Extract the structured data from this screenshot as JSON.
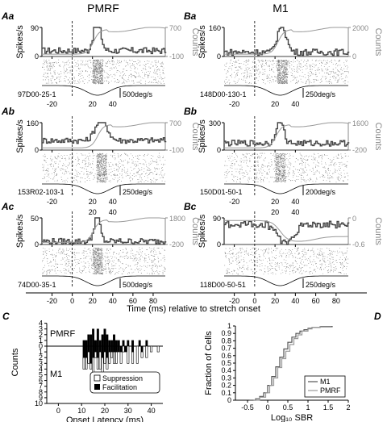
{
  "figure": {
    "col_titles": [
      "PMRF",
      "M1"
    ],
    "time_axis_label": "Time (ms) relative  to stretch onset",
    "time_ticks": [
      -20,
      0,
      20,
      40,
      60,
      80
    ],
    "left_axis_label": "Spikes/s",
    "right_axis_label": "Counts",
    "panels": [
      {
        "id": "Aa",
        "label": "Aa",
        "cell": "97D00-25-1",
        "velocity": "500deg/s",
        "y_top": "90",
        "y_bot": "0",
        "r_top": "700",
        "r_bot": "-100"
      },
      {
        "id": "Ab",
        "label": "Ab",
        "cell": "153R02-103-1",
        "velocity": "250deg/s",
        "y_top": "160",
        "y_bot": "0",
        "r_top": "700",
        "r_bot": "-100"
      },
      {
        "id": "Ac",
        "label": "Ac",
        "cell": "74D00-35-1",
        "velocity": "500deg/s",
        "y_top": "50",
        "y_bot": "0",
        "r_top": "1800",
        "r_bot": "-200"
      },
      {
        "id": "Ba",
        "label": "Ba",
        "cell": "148D00-130-1",
        "velocity": "250deg/s",
        "y_top": "160",
        "y_bot": "0",
        "r_top": "2000",
        "r_bot": "0"
      },
      {
        "id": "Bb",
        "label": "Bb",
        "cell": "150D01-50-1",
        "velocity": "200deg/s",
        "y_top": "300",
        "y_bot": "0",
        "r_top": "1600",
        "r_bot": "-200"
      },
      {
        "id": "Bc",
        "label": "Bc",
        "cell": "118D00-50-51",
        "velocity": "250deg/s",
        "y_top": "90",
        "y_bot": "0",
        "r_top": "0",
        "r_bot": "-0.6"
      }
    ]
  },
  "chart_data": [
    {
      "type": "bar",
      "panel": "C",
      "xlabel": "Onset Latency (ms)",
      "ylabel": "Counts",
      "x_ticks": [
        "0",
        "10",
        "20",
        "30",
        "40"
      ],
      "y_ticks_top": [
        "4",
        "3",
        "2",
        "1",
        "0"
      ],
      "y_ticks_bottom": [
        "1",
        "2",
        "3",
        "4",
        "5",
        "6",
        "7",
        "8",
        "9",
        "10"
      ],
      "group_labels": [
        "PMRF",
        "M1"
      ],
      "legend": [
        "Suppression",
        "Facilitation"
      ],
      "pmrf_facilitation": [
        [
          11,
          1
        ],
        [
          12,
          1
        ],
        [
          13,
          2
        ],
        [
          14,
          2
        ],
        [
          15,
          3
        ],
        [
          16,
          1
        ],
        [
          17,
          3
        ],
        [
          18,
          1
        ],
        [
          19,
          2
        ],
        [
          20,
          3
        ],
        [
          21,
          2
        ],
        [
          22,
          1
        ],
        [
          23,
          1
        ],
        [
          24,
          2
        ],
        [
          25,
          1
        ],
        [
          26,
          1
        ],
        [
          28,
          1
        ],
        [
          30,
          1
        ],
        [
          32,
          1
        ],
        [
          35,
          1
        ],
        [
          38,
          1
        ]
      ],
      "m1_facilitation": [
        [
          11,
          2
        ],
        [
          12,
          2
        ],
        [
          13,
          1
        ],
        [
          14,
          3
        ],
        [
          15,
          2
        ],
        [
          16,
          1
        ],
        [
          17,
          2
        ],
        [
          18,
          1
        ],
        [
          19,
          2
        ],
        [
          20,
          1
        ],
        [
          21,
          2
        ],
        [
          22,
          1
        ],
        [
          23,
          1
        ],
        [
          24,
          1
        ],
        [
          25,
          1
        ],
        [
          26,
          1
        ],
        [
          27,
          1
        ],
        [
          29,
          1
        ],
        [
          32,
          1
        ],
        [
          36,
          1
        ]
      ],
      "m1_suppression": [
        [
          11,
          2
        ],
        [
          12,
          2
        ],
        [
          13,
          2
        ],
        [
          14,
          1
        ],
        [
          15,
          3
        ],
        [
          16,
          1
        ],
        [
          17,
          2
        ],
        [
          18,
          3
        ],
        [
          19,
          4
        ],
        [
          20,
          2
        ],
        [
          21,
          2
        ],
        [
          22,
          2
        ],
        [
          23,
          1
        ],
        [
          24,
          2
        ],
        [
          25,
          2
        ],
        [
          27,
          2
        ],
        [
          28,
          1
        ],
        [
          30,
          3
        ],
        [
          32,
          2
        ],
        [
          34,
          3
        ],
        [
          36,
          1
        ],
        [
          38,
          2
        ],
        [
          40,
          1
        ],
        [
          43,
          1
        ]
      ]
    },
    {
      "type": "line",
      "panel": "D",
      "xlabel": "Log₁₀ SBR",
      "ylabel": "Fraction of Cells",
      "x_ticks": [
        "-0.5",
        "0",
        "0.5",
        "1",
        "1.5",
        "2"
      ],
      "y_ticks": [
        "0",
        "0.1",
        "0.2",
        "0.3",
        "0.4",
        "0.5",
        "0.6",
        "0.7",
        "0.8",
        "0.9",
        "1"
      ],
      "xlim": [
        -0.8,
        2
      ],
      "ylim": [
        0,
        1
      ],
      "series": [
        {
          "name": "M1",
          "color": "#555555",
          "x": [
            -0.45,
            -0.3,
            -0.2,
            -0.1,
            0,
            0.1,
            0.2,
            0.3,
            0.4,
            0.5,
            0.6,
            0.7,
            0.8,
            0.9,
            1.0,
            1.1,
            1.3,
            1.6
          ],
          "y": [
            0,
            0.02,
            0.05,
            0.1,
            0.2,
            0.32,
            0.45,
            0.58,
            0.69,
            0.78,
            0.85,
            0.9,
            0.93,
            0.95,
            0.97,
            0.98,
            0.99,
            1.0
          ]
        },
        {
          "name": "PMRF",
          "color": "#999999",
          "x": [
            -0.35,
            -0.2,
            -0.05,
            0.05,
            0.15,
            0.25,
            0.35,
            0.45,
            0.55,
            0.65,
            0.75,
            0.85,
            1.0,
            1.1,
            1.3
          ],
          "y": [
            0,
            0.04,
            0.1,
            0.2,
            0.3,
            0.44,
            0.56,
            0.66,
            0.75,
            0.83,
            0.88,
            0.93,
            0.96,
            0.98,
            1.0
          ]
        }
      ]
    }
  ],
  "panel_labels": {
    "C": "C",
    "D": "D"
  }
}
